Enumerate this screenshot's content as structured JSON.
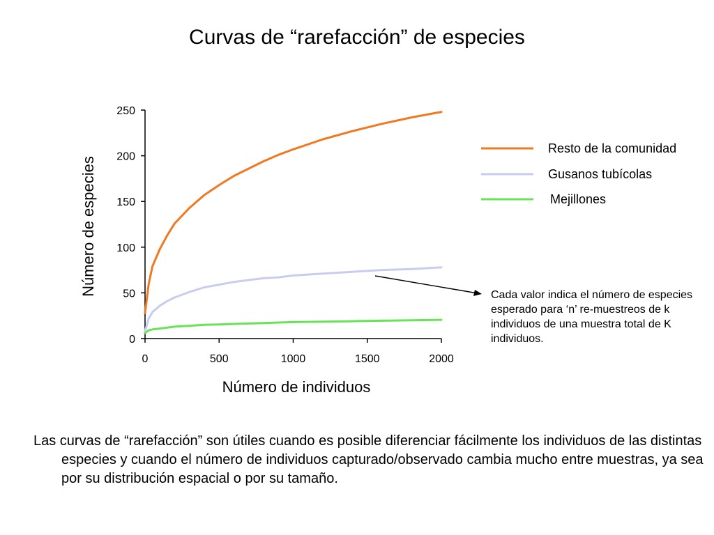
{
  "slide": {
    "title": "Curvas de “rarefacción” de especies",
    "annotation": "Cada valor indica el número de especies esperado para ‘n’ re-muestreos de k individuos de una muestra total de K individuos.",
    "footer": "Las curvas de “rarefacción” son útiles cuando es posible diferenciar fácilmente los individuos de las distintas especies y cuando el número de individuos capturado/observado cambia mucho entre muestras, ya sea por su distribución espacial o por su tamaño."
  },
  "chart_data": {
    "type": "line",
    "title": "",
    "xlabel": "Número de individuos",
    "ylabel": "Número de especies",
    "xlim": [
      0,
      2000
    ],
    "ylim": [
      0,
      250
    ],
    "x_ticks": [
      "0",
      "500",
      "1000",
      "1500",
      "2000"
    ],
    "y_ticks": [
      "0",
      "50",
      "100",
      "150",
      "200",
      "250"
    ],
    "grid": false,
    "legend_position": "right",
    "x": [
      0,
      25,
      50,
      100,
      150,
      200,
      300,
      400,
      500,
      600,
      700,
      800,
      900,
      1000,
      1200,
      1400,
      1600,
      1800,
      2000
    ],
    "series": [
      {
        "name": "Resto de la comunidad",
        "color": "#F07820",
        "values": [
          28,
          60,
          79,
          98,
          113,
          126,
          143,
          157,
          168,
          178,
          186,
          194,
          201,
          207,
          218,
          227,
          235,
          242,
          248
        ]
      },
      {
        "name": "Gusanos tubícolas",
        "color": "#C8CCF0",
        "values": [
          8,
          22,
          29,
          36,
          41,
          45,
          51,
          56,
          59,
          62,
          64,
          66,
          67,
          69,
          71,
          73,
          75,
          76,
          78
        ]
      },
      {
        "name": "Mejillones",
        "color": "#66E455",
        "values": [
          6,
          9,
          10,
          11,
          12,
          13,
          14,
          15,
          15.5,
          16,
          16.5,
          17,
          17.5,
          18,
          18.5,
          19,
          19.5,
          20,
          20.5
        ]
      }
    ]
  }
}
